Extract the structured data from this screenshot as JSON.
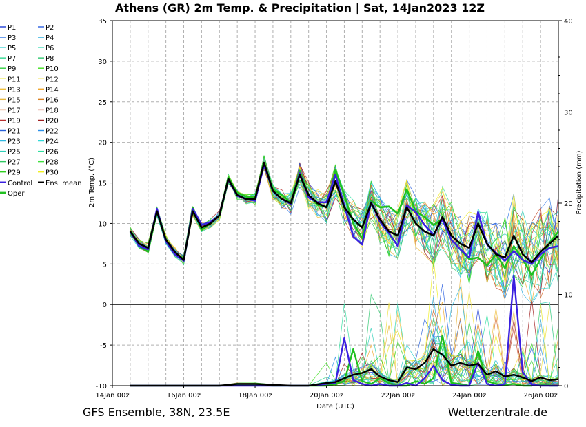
{
  "title": "Athens  (GR)  2m Temp. & Precipitation | Sat, 14Jan2023 12Z",
  "footer_left": "GFS Ensemble, 38N, 23.5E",
  "footer_right": "Wetterzentrale.de",
  "chart_data": {
    "type": "line",
    "xlabel": "Date (UTC)",
    "ylabel_left": "2m Temp. (°C)",
    "ylabel_right": "Precipitation (mm)",
    "x_ticks": [
      "14Jan 00z",
      "16Jan 00z",
      "18Jan 00z",
      "20Jan 00z",
      "22Jan 00z",
      "24Jan 00z",
      "26Jan 00z"
    ],
    "x_range_hours": [
      0,
      300
    ],
    "y_left_ticks": [
      "-10",
      "-5",
      "0",
      "5",
      "10",
      "15",
      "20",
      "25",
      "30",
      "35"
    ],
    "y_left_range": [
      -10,
      35
    ],
    "y_right_ticks": [
      "0",
      "10",
      "20",
      "30",
      "40"
    ],
    "y_right_range": [
      0,
      40
    ],
    "grid": true,
    "legend": [
      {
        "name": "P1",
        "color": "#1f3fd6"
      },
      {
        "name": "P2",
        "color": "#2a5fe0"
      },
      {
        "name": "P3",
        "color": "#3a7fe8"
      },
      {
        "name": "P4",
        "color": "#2fb0e0"
      },
      {
        "name": "P5",
        "color": "#2ad0d0"
      },
      {
        "name": "P6",
        "color": "#2ad8b0"
      },
      {
        "name": "P7",
        "color": "#30d890"
      },
      {
        "name": "P8",
        "color": "#30c870"
      },
      {
        "name": "P9",
        "color": "#30d040"
      },
      {
        "name": "P10",
        "color": "#40e020"
      },
      {
        "name": "P11",
        "color": "#e8e820"
      },
      {
        "name": "P12",
        "color": "#f0e040"
      },
      {
        "name": "P13",
        "color": "#f0c040"
      },
      {
        "name": "P14",
        "color": "#f0a830"
      },
      {
        "name": "P15",
        "color": "#e8b840"
      },
      {
        "name": "P16",
        "color": "#d88020"
      },
      {
        "name": "P17",
        "color": "#d87030"
      },
      {
        "name": "P18",
        "color": "#c85030"
      },
      {
        "name": "P19",
        "color": "#b83030"
      },
      {
        "name": "P20",
        "color": "#a02020"
      },
      {
        "name": "P21",
        "color": "#2860d8"
      },
      {
        "name": "P22",
        "color": "#2a90e8"
      },
      {
        "name": "P23",
        "color": "#30b8e0"
      },
      {
        "name": "P24",
        "color": "#30d8d8"
      },
      {
        "name": "P25",
        "color": "#30d0b8"
      },
      {
        "name": "P26",
        "color": "#30e0a0"
      },
      {
        "name": "P27",
        "color": "#30c860"
      },
      {
        "name": "P28",
        "color": "#40e040"
      },
      {
        "name": "P29",
        "color": "#30d020"
      },
      {
        "name": "P30",
        "color": "#f0f020"
      },
      {
        "name": "Control",
        "color": "#3a20e0"
      },
      {
        "name": "Ens. mean",
        "color": "#000000"
      },
      {
        "name": "Oper",
        "color": "#20c020"
      }
    ],
    "series": [
      {
        "name": "Ens. mean",
        "axis": "temp",
        "x": [
          12,
          18,
          24,
          30,
          36,
          42,
          48,
          54,
          60,
          66,
          72,
          78,
          84,
          90,
          96,
          102,
          108,
          114,
          120,
          126,
          132,
          138,
          144,
          150,
          156,
          162,
          168,
          174,
          180,
          186,
          192,
          198,
          204,
          210,
          216,
          222,
          228,
          234,
          240,
          246,
          252,
          258,
          264,
          270,
          276,
          282,
          288,
          294,
          300
        ],
        "values": [
          9,
          7.5,
          7,
          11.5,
          8,
          6.5,
          5.5,
          11.5,
          9.5,
          10,
          11,
          15.5,
          13.5,
          13,
          13,
          17.5,
          14,
          13,
          12.5,
          16,
          13.5,
          12.5,
          12,
          15.2,
          12,
          10.5,
          9.5,
          12.5,
          10.5,
          9,
          8.5,
          12,
          10,
          9,
          8.5,
          10.8,
          8.5,
          7.5,
          7,
          10,
          7.5,
          6.2,
          5.8,
          8.5,
          6.2,
          5.2,
          6.5,
          7.5,
          8.5
        ]
      },
      {
        "name": "Oper",
        "axis": "temp",
        "x": [
          12,
          18,
          24,
          30,
          36,
          42,
          48,
          54,
          60,
          66,
          72,
          78,
          84,
          90,
          96,
          102,
          108,
          114,
          120,
          126,
          132,
          138,
          144,
          150,
          156,
          162,
          168,
          174,
          180,
          186,
          192,
          198,
          204,
          210,
          216,
          222,
          228,
          234,
          240,
          246,
          252,
          258,
          264,
          270,
          276,
          282,
          288,
          294,
          300
        ],
        "values": [
          9,
          7.2,
          6.5,
          11.5,
          7.8,
          6.2,
          5.6,
          12,
          9.2,
          10,
          11,
          15.7,
          13.8,
          13.3,
          13.2,
          17.2,
          14.2,
          13.5,
          12.6,
          16.5,
          13.5,
          12.3,
          12,
          16.6,
          13.5,
          10,
          8.2,
          12.8,
          12,
          12.1,
          11.2,
          14.2,
          11.5,
          10.8,
          9.8,
          10.6,
          8,
          6.8,
          5.6,
          5.8,
          4.8,
          6.2,
          4.5,
          7.2,
          5.6,
          3.6,
          5.6,
          7.6,
          9
        ]
      },
      {
        "name": "Control",
        "axis": "temp",
        "x": [
          12,
          18,
          24,
          30,
          36,
          42,
          48,
          54,
          60,
          66,
          72,
          78,
          84,
          90,
          96,
          102,
          108,
          114,
          120,
          126,
          132,
          138,
          144,
          150,
          156,
          162,
          168,
          174,
          180,
          186,
          192,
          198,
          204,
          210,
          216,
          222,
          228,
          234,
          240,
          246,
          252,
          258,
          264,
          270,
          276,
          282,
          288,
          294,
          300
        ],
        "values": [
          9,
          7.2,
          6.8,
          11.8,
          7.8,
          6.2,
          5.4,
          11.8,
          9.8,
          10.2,
          11,
          15.4,
          13.4,
          13,
          12.8,
          17.2,
          14,
          13,
          12.4,
          16.2,
          13.2,
          12.6,
          12.6,
          16,
          12.2,
          8.4,
          7.4,
          12.6,
          10.2,
          8.8,
          7.2,
          12.2,
          11.4,
          9.8,
          8.6,
          10.5,
          8,
          6.8,
          5.8,
          11.4,
          7.4,
          6.4,
          5.4,
          6.6,
          5.5,
          5,
          6.2,
          7,
          7.2
        ]
      },
      {
        "name": "Ens. mean precip",
        "axis": "precip",
        "x": [
          12,
          24,
          36,
          48,
          60,
          72,
          84,
          96,
          108,
          120,
          132,
          144,
          150,
          156,
          162,
          168,
          174,
          180,
          186,
          192,
          198,
          204,
          210,
          216,
          222,
          228,
          234,
          240,
          246,
          252,
          258,
          264,
          270,
          276,
          282,
          288,
          294,
          300
        ],
        "values": [
          0,
          0,
          0,
          0,
          0,
          0,
          0.2,
          0.2,
          0.1,
          0,
          0,
          0.3,
          0.4,
          0.8,
          1.2,
          1.4,
          1.8,
          1,
          0.6,
          0.4,
          2,
          1.8,
          2.5,
          4,
          3.4,
          2.2,
          2.5,
          2.2,
          2.4,
          1.2,
          1.6,
          1,
          1.2,
          0.9,
          0.5,
          0.9,
          0.6,
          0.7
        ]
      },
      {
        "name": "Oper precip",
        "axis": "precip",
        "x": [
          12,
          24,
          36,
          48,
          60,
          72,
          84,
          96,
          108,
          120,
          132,
          144,
          150,
          156,
          162,
          168,
          174,
          180,
          186,
          192,
          198,
          204,
          210,
          216,
          222,
          228,
          234,
          240,
          246,
          252,
          258,
          264,
          270,
          276,
          282,
          288,
          294,
          300
        ],
        "values": [
          0,
          0,
          0,
          0,
          0,
          0,
          0.1,
          0.1,
          0,
          0,
          0,
          0,
          0.2,
          0.5,
          4,
          0.5,
          0.2,
          0.8,
          0.3,
          0,
          0,
          0.5,
          0.2,
          0.8,
          5.5,
          0.3,
          0.2,
          0,
          3.8,
          0.5,
          0.2,
          0.1,
          0.2,
          0,
          0,
          0.2,
          0,
          0
        ]
      },
      {
        "name": "Control precip",
        "axis": "precip",
        "x": [
          12,
          24,
          36,
          48,
          60,
          72,
          84,
          96,
          108,
          120,
          132,
          144,
          150,
          156,
          162,
          168,
          174,
          180,
          186,
          192,
          198,
          204,
          210,
          216,
          222,
          228,
          234,
          240,
          246,
          252,
          258,
          264,
          270,
          276,
          282,
          288,
          294,
          300
        ],
        "values": [
          0,
          0,
          0,
          0,
          0,
          0,
          0,
          0,
          0,
          0,
          0,
          0.2,
          0.3,
          5.2,
          0.6,
          0.2,
          0,
          0.2,
          0,
          0,
          0.3,
          0,
          0.8,
          2.2,
          0.6,
          0.1,
          0,
          0,
          2.5,
          0.2,
          0,
          0.2,
          12,
          1.5,
          0.1,
          0,
          0,
          0
        ]
      }
    ]
  }
}
